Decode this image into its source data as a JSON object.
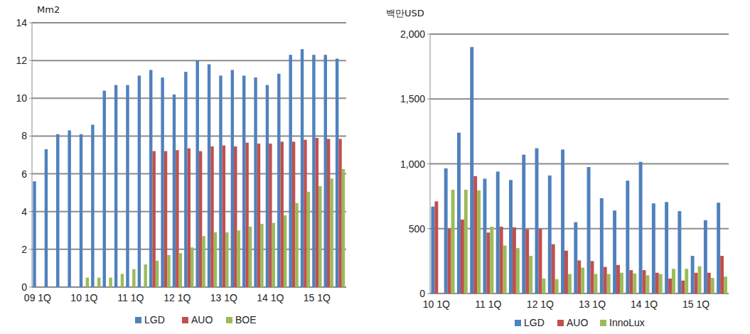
{
  "chart_data": [
    {
      "type": "bar",
      "y_label": "Mm2",
      "categories": [
        "09 1Q",
        null,
        null,
        null,
        "10 1Q",
        null,
        null,
        null,
        "11 1Q",
        null,
        null,
        null,
        "12 1Q",
        null,
        null,
        null,
        "13 1Q",
        null,
        null,
        null,
        "14 1Q",
        null,
        null,
        null,
        "15 1Q",
        null,
        null
      ],
      "series": [
        {
          "name": "LGD",
          "color": "#4f81bd",
          "values": [
            5.6,
            7.3,
            8.1,
            8.3,
            8.1,
            8.6,
            10.4,
            10.7,
            10.7,
            11.2,
            11.5,
            11.1,
            10.2,
            11.4,
            12.0,
            11.8,
            11.2,
            11.5,
            11.2,
            11.1,
            10.7,
            11.3,
            12.3,
            12.6,
            12.3,
            12.3,
            12.1
          ]
        },
        {
          "name": "AUO",
          "color": "#c0504d",
          "values": [
            null,
            null,
            null,
            null,
            null,
            null,
            null,
            null,
            null,
            null,
            7.2,
            7.2,
            7.25,
            7.35,
            7.2,
            7.45,
            7.5,
            7.45,
            7.65,
            7.6,
            7.6,
            7.7,
            7.7,
            7.8,
            7.9,
            7.85,
            7.85
          ]
        },
        {
          "name": "BOE",
          "color": "#9bbb59",
          "values": [
            null,
            null,
            null,
            null,
            0.5,
            0.5,
            0.5,
            0.7,
            0.95,
            1.2,
            1.4,
            1.7,
            1.8,
            2.1,
            2.7,
            2.9,
            2.9,
            3.0,
            3.2,
            3.35,
            3.4,
            3.8,
            4.45,
            5.05,
            5.35,
            5.75,
            6.25
          ]
        }
      ],
      "ylim": [
        0,
        14
      ],
      "yticks": [
        0,
        2,
        4,
        6,
        8,
        10,
        12,
        14
      ],
      "grid": true,
      "legend": "bottom"
    },
    {
      "type": "bar",
      "y_label": "백만USD",
      "categories": [
        "10 1Q",
        null,
        null,
        null,
        "11 1Q",
        null,
        null,
        null,
        "12 1Q",
        null,
        null,
        null,
        "13 1Q",
        null,
        null,
        null,
        "14 1Q",
        null,
        null,
        null,
        "15 1Q",
        null,
        null
      ],
      "series": [
        {
          "name": "LGD",
          "color": "#4f81bd",
          "values": [
            670,
            965,
            1240,
            1900,
            885,
            940,
            875,
            1070,
            1120,
            910,
            1110,
            550,
            975,
            735,
            640,
            870,
            1015,
            695,
            705,
            635,
            290,
            565,
            700
          ]
        },
        {
          "name": "AUO",
          "color": "#c0504d",
          "values": [
            710,
            500,
            570,
            905,
            470,
            515,
            510,
            495,
            500,
            380,
            330,
            255,
            250,
            205,
            220,
            180,
            180,
            160,
            115,
            100,
            160,
            160,
            290
          ]
        },
        {
          "name": "InnoLux",
          "color": "#9bbb59",
          "values": [
            null,
            800,
            800,
            795,
            515,
            370,
            350,
            290,
            115,
            110,
            150,
            200,
            150,
            150,
            160,
            155,
            140,
            150,
            190,
            190,
            210,
            120,
            130
          ]
        }
      ],
      "ylim": [
        0,
        2000
      ],
      "yticks": [
        0,
        500,
        {
          "value": 1000,
          "label": "1,000"
        },
        {
          "value": 1500,
          "label": "1,500"
        },
        {
          "value": 2000,
          "label": "2,000"
        }
      ],
      "grid": true,
      "legend": "bottom"
    }
  ]
}
